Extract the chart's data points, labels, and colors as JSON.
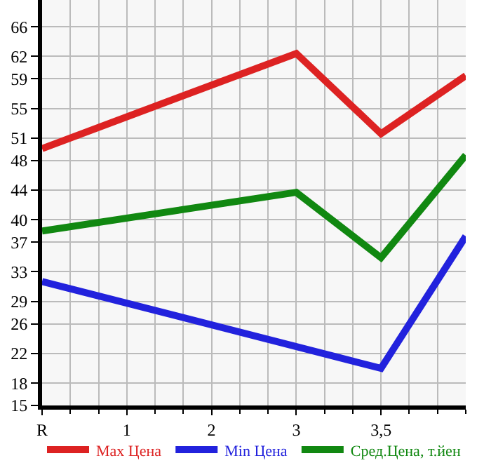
{
  "chart_data": {
    "type": "line",
    "categories": [
      "R",
      "1",
      "2",
      "3",
      "3,5",
      null
    ],
    "series": [
      {
        "name": "Max Цена",
        "color": "#dd2222",
        "values": [
          49.6,
          null,
          null,
          62.4,
          51.6,
          59.4
        ]
      },
      {
        "name": "Min Цена",
        "color": "#2222dd",
        "values": [
          31.7,
          null,
          null,
          null,
          20.0,
          37.8
        ]
      },
      {
        "name": "Сред.Цена, т.йен",
        "color": "#118811",
        "values": [
          38.5,
          null,
          null,
          43.7,
          34.9,
          48.7
        ]
      }
    ],
    "ylim": [
      15,
      69.6
    ],
    "yticks": [
      15,
      18,
      22,
      26,
      29,
      33,
      37,
      40,
      44,
      48,
      51,
      55,
      59,
      62,
      66
    ],
    "grid": true,
    "legend": "bottom",
    "marker": "none",
    "line_style": "solid"
  }
}
